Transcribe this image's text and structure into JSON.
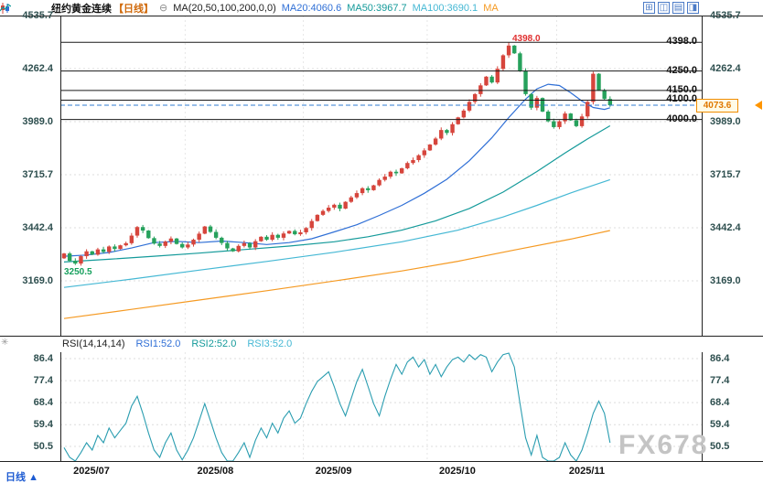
{
  "header": {
    "title": "纽约黄金连续",
    "period_tag": "【日线】",
    "collapse_glyph": "⊖",
    "ma_label": "MA(20,50,100,200,0,0)",
    "ma20": "MA20:4060.6",
    "ma50": "MA50:3967.7",
    "ma100": "MA100:3690.1",
    "ma200_partial": "MA",
    "colors": {
      "ma20": "#2f6fd6",
      "ma50": "#149a9a",
      "ma100": "#45b8d4",
      "ma200": "#f59a23"
    }
  },
  "toolbar": {
    "icons": [
      {
        "name": "grid-view-icon",
        "glyph": "⊞"
      },
      {
        "name": "chart-window-icon",
        "glyph": "◫"
      },
      {
        "name": "list-view-icon",
        "glyph": "▤"
      },
      {
        "name": "split-view-icon",
        "glyph": "◨"
      }
    ]
  },
  "rsi_header": {
    "label": "RSI(14,14,14)",
    "rsi1": "RSI1:52.0",
    "rsi2": "RSI2:52.0",
    "rsi3": "RSI3:52.0"
  },
  "side_icons": {
    "star_glyph": "✳"
  },
  "bottom_bar": {
    "period": "日线",
    "arrow": "▲"
  },
  "watermark": "FX678",
  "chart_data": {
    "type": "candlestick",
    "title": "纽约黄金连续【日线】 (NY Gold Continuous, Daily)",
    "current_price": 4073.6,
    "current_price_label": "4073.6",
    "levels": [
      4398.0,
      4250.0,
      4150.0,
      4100.0,
      4000.0
    ],
    "annotations": {
      "peak": "4398.0",
      "low": "3250.5"
    },
    "x_axis": {
      "labels": [
        "2025/07",
        "2025/08",
        "2025/09",
        "2025/10",
        "2025/11"
      ],
      "month_start_indices": [
        0,
        22,
        43,
        65,
        88
      ]
    },
    "y_axis": {
      "ticks": [
        4535.7,
        4262.4,
        3989.0,
        3715.7,
        3442.4,
        3169.0
      ]
    },
    "style": {
      "up_color": "#d6453c",
      "down_color": "#26a15c",
      "level_color": "#1a1a1a",
      "current_line_color": "#2f7bd0"
    },
    "candles": {
      "first_open": 3285,
      "peak_index": 79,
      "peak_high": 4398.0,
      "low_index": 2,
      "low_low": 3250.5,
      "closes": [
        3310,
        3272,
        3258,
        3296,
        3321,
        3304,
        3331,
        3318,
        3346,
        3333,
        3352,
        3363,
        3402,
        3446,
        3428,
        3389,
        3361,
        3349,
        3371,
        3387,
        3359,
        3341,
        3356,
        3381,
        3412,
        3449,
        3421,
        3391,
        3364,
        3336,
        3321,
        3349,
        3363,
        3341,
        3373,
        3396,
        3381,
        3406,
        3391,
        3413,
        3426,
        3409,
        3419,
        3441,
        3477,
        3509,
        3529,
        3546,
        3561,
        3541,
        3576,
        3599,
        3621,
        3646,
        3636,
        3661,
        3689,
        3706,
        3731,
        3723,
        3749,
        3776,
        3791,
        3816,
        3841,
        3871,
        3902,
        3946,
        3931,
        3976,
        4011,
        4046,
        4091,
        4131,
        4176,
        4221,
        4191,
        4261,
        4331,
        4381,
        4341,
        4251,
        4131,
        4061,
        4111,
        4041,
        3991,
        3961,
        3991,
        4031,
        3996,
        3966,
        4016,
        4091,
        4236,
        4151,
        4106,
        4073.6
      ]
    },
    "ma_lines": [
      {
        "name": "MA20",
        "color": "#2f6fd6",
        "last_value": 4060.6,
        "points": [
          [
            0,
            3296
          ],
          [
            4,
            3302
          ],
          [
            8,
            3315
          ],
          [
            12,
            3338
          ],
          [
            16,
            3366
          ],
          [
            20,
            3372
          ],
          [
            24,
            3366
          ],
          [
            28,
            3374
          ],
          [
            32,
            3366
          ],
          [
            36,
            3356
          ],
          [
            40,
            3366
          ],
          [
            44,
            3386
          ],
          [
            48,
            3421
          ],
          [
            52,
            3458
          ],
          [
            56,
            3506
          ],
          [
            60,
            3558
          ],
          [
            64,
            3620
          ],
          [
            68,
            3692
          ],
          [
            72,
            3788
          ],
          [
            76,
            3906
          ],
          [
            79,
            4010
          ],
          [
            82,
            4105
          ],
          [
            84,
            4158
          ],
          [
            86,
            4182
          ],
          [
            88,
            4175
          ],
          [
            90,
            4138
          ],
          [
            92,
            4095
          ],
          [
            94,
            4062
          ],
          [
            96,
            4052
          ],
          [
            97,
            4060.6
          ]
        ]
      },
      {
        "name": "MA50",
        "color": "#149a9a",
        "last_value": 3967.7,
        "points": [
          [
            0,
            3266
          ],
          [
            8,
            3280
          ],
          [
            16,
            3296
          ],
          [
            24,
            3312
          ],
          [
            32,
            3330
          ],
          [
            40,
            3348
          ],
          [
            48,
            3370
          ],
          [
            54,
            3396
          ],
          [
            60,
            3430
          ],
          [
            66,
            3478
          ],
          [
            72,
            3542
          ],
          [
            78,
            3626
          ],
          [
            84,
            3732
          ],
          [
            89,
            3828
          ],
          [
            93,
            3900
          ],
          [
            97,
            3967.7
          ]
        ]
      },
      {
        "name": "MA100",
        "color": "#45b8d4",
        "last_value": 3690.1,
        "points": [
          [
            0,
            3135
          ],
          [
            12,
            3178
          ],
          [
            24,
            3224
          ],
          [
            36,
            3269
          ],
          [
            48,
            3316
          ],
          [
            60,
            3370
          ],
          [
            70,
            3430
          ],
          [
            78,
            3498
          ],
          [
            84,
            3558
          ],
          [
            90,
            3622
          ],
          [
            97,
            3690.1
          ]
        ]
      },
      {
        "name": "MA200",
        "color": "#f59a23",
        "last_value": 3428,
        "points": [
          [
            0,
            2975
          ],
          [
            12,
            3022
          ],
          [
            24,
            3070
          ],
          [
            36,
            3118
          ],
          [
            48,
            3168
          ],
          [
            60,
            3220
          ],
          [
            70,
            3270
          ],
          [
            80,
            3328
          ],
          [
            90,
            3384
          ],
          [
            97,
            3428
          ]
        ]
      }
    ],
    "rsi": {
      "ticks": [
        86.4,
        77.4,
        68.4,
        59.4,
        50.5
      ],
      "color": "#2a9db0",
      "current": 52.0,
      "values": [
        50,
        46,
        43,
        48,
        52,
        49,
        55,
        52,
        58,
        54,
        57,
        60,
        67,
        71,
        64,
        56,
        49,
        46,
        52,
        56,
        49,
        45,
        49,
        54,
        61,
        68,
        61,
        54,
        48,
        42,
        41,
        48,
        52,
        46,
        53,
        58,
        54,
        60,
        56,
        62,
        65,
        60,
        62,
        68,
        73,
        77,
        79,
        81,
        75,
        68,
        63,
        70,
        77,
        82,
        75,
        68,
        63,
        71,
        78,
        84,
        80,
        85,
        87,
        83,
        86,
        80,
        84,
        79,
        83,
        86,
        87,
        85,
        88,
        86,
        88,
        87,
        81,
        85,
        88,
        89,
        83,
        68,
        54,
        47,
        55,
        46,
        43,
        42,
        46,
        52,
        47,
        43,
        49,
        56,
        64,
        69,
        64,
        52
      ]
    }
  }
}
